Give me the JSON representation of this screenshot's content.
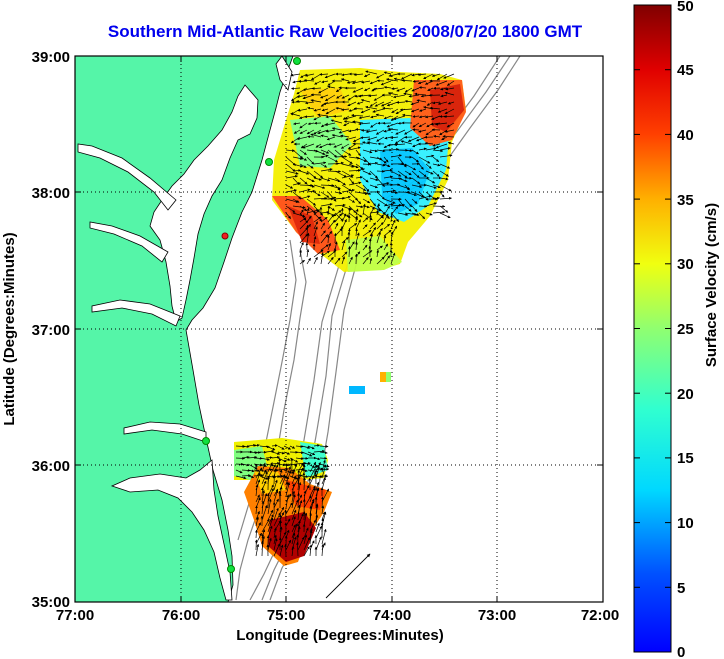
{
  "title": "Southern Mid-Atlantic Raw Velocities 2008/07/20 1800 GMT",
  "xlabel": "Longitude (Degrees:Minutes)",
  "ylabel": "Latitude (Degrees:Minutes)",
  "colorbar": {
    "label": "Surface Velocity (cm/s)",
    "ticks": [
      "0",
      "5",
      "10",
      "15",
      "20",
      "25",
      "30",
      "35",
      "40",
      "45",
      "50"
    ],
    "min": 0,
    "max": 50
  },
  "map": {
    "lon_range": [
      -77,
      -72
    ],
    "lat_range": [
      35,
      39
    ],
    "x_ticks": [
      "77:00",
      "76:00",
      "75:00",
      "74:00",
      "73:00",
      "72:00"
    ],
    "y_ticks": [
      "39:00",
      "38:00",
      "37:00",
      "36:00",
      "35:00"
    ],
    "grid": "dotted",
    "land_color": "#55f5a8",
    "reference_arrow_direction": "northeast"
  }
}
